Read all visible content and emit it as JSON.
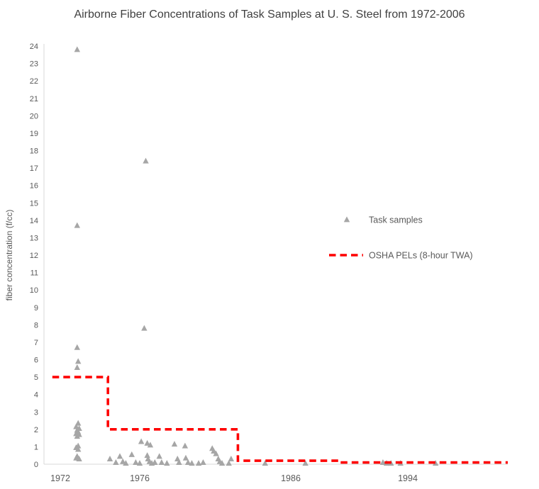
{
  "chart_data": {
    "type": "scatter",
    "title": "Airborne Fiber Concentrations of Task Samples at U. S. Steel from 1972-2006",
    "xlabel": "",
    "ylabel": "fiber concentration (f/cc)",
    "ylim": [
      0,
      24
    ],
    "y_tick_step": 1,
    "x_tick_labels": [
      1972,
      1976,
      1986,
      1994
    ],
    "grid": false,
    "legend_position": "middle-right",
    "colors": {
      "marker": "#a6a6a6",
      "pel_line": "#fe0000",
      "axis_text": "#595959",
      "title_text": "#404040",
      "axis_line": "#d9d9d9"
    },
    "legend": [
      {
        "label": "Task samples",
        "marker": "triangle",
        "color": "#a6a6a6"
      },
      {
        "label": "OSHA PELs (8-hour TWA)",
        "marker": "dashed-line",
        "color": "#fe0000"
      }
    ],
    "series": [
      {
        "name": "Task samples",
        "type": "scatter",
        "marker": "triangle",
        "color": "#a6a6a6",
        "points": [
          [
            1972.85,
            23.8
          ],
          [
            1972.85,
            13.7
          ],
          [
            1972.85,
            6.7
          ],
          [
            1972.9,
            5.9
          ],
          [
            1972.85,
            5.55
          ],
          [
            1972.9,
            2.35
          ],
          [
            1972.8,
            2.15
          ],
          [
            1972.95,
            2.05
          ],
          [
            1972.85,
            1.95
          ],
          [
            1972.9,
            1.85
          ],
          [
            1972.8,
            1.75
          ],
          [
            1972.95,
            1.7
          ],
          [
            1972.85,
            1.6
          ],
          [
            1972.9,
            1.05
          ],
          [
            1972.8,
            0.95
          ],
          [
            1972.9,
            0.85
          ],
          [
            1972.85,
            0.45
          ],
          [
            1972.8,
            0.35
          ],
          [
            1972.95,
            0.3
          ],
          [
            1974.5,
            0.3
          ],
          [
            1974.8,
            0.1
          ],
          [
            1975.0,
            0.45
          ],
          [
            1975.15,
            0.15
          ],
          [
            1975.3,
            0.05
          ],
          [
            1975.6,
            0.55
          ],
          [
            1975.8,
            0.1
          ],
          [
            1976.0,
            0.05
          ],
          [
            1976.1,
            1.3
          ],
          [
            1976.4,
            17.4
          ],
          [
            1976.3,
            7.8
          ],
          [
            1976.5,
            1.2
          ],
          [
            1976.7,
            1.1
          ],
          [
            1976.5,
            0.5
          ],
          [
            1976.55,
            0.3
          ],
          [
            1976.65,
            0.15
          ],
          [
            1976.8,
            0.05
          ],
          [
            1977.0,
            0.1
          ],
          [
            1977.3,
            0.45
          ],
          [
            1977.45,
            0.1
          ],
          [
            1977.8,
            0.05
          ],
          [
            1978.3,
            1.15
          ],
          [
            1978.5,
            0.3
          ],
          [
            1978.6,
            0.1
          ],
          [
            1979.0,
            1.05
          ],
          [
            1979.05,
            0.35
          ],
          [
            1979.2,
            0.1
          ],
          [
            1979.45,
            0.05
          ],
          [
            1979.9,
            0.05
          ],
          [
            1980.2,
            0.1
          ],
          [
            1980.8,
            0.9
          ],
          [
            1980.9,
            0.75
          ],
          [
            1981.05,
            0.6
          ],
          [
            1981.2,
            0.3
          ],
          [
            1981.3,
            0.15
          ],
          [
            1981.45,
            0.05
          ],
          [
            1981.9,
            0.05
          ],
          [
            1982.05,
            0.3
          ],
          [
            1984.3,
            0.05
          ],
          [
            1987.0,
            0.05
          ],
          [
            1992.3,
            0.1
          ],
          [
            1992.55,
            0.05
          ],
          [
            1992.85,
            0.05
          ],
          [
            1993.5,
            0.05
          ],
          [
            1995.9,
            0.05
          ]
        ]
      },
      {
        "name": "OSHA PELs (8-hour TWA)",
        "type": "step-line",
        "dashed": true,
        "color": "#fe0000",
        "segments": [
          {
            "from": 1971.6,
            "to": 1974.4,
            "value": 5
          },
          {
            "from": 1974.4,
            "to": 1982.5,
            "value": 2
          },
          {
            "from": 1982.5,
            "to": 1989.4,
            "value": 0.2
          },
          {
            "from": 1989.4,
            "to": 2001.0,
            "value": 0.1
          }
        ]
      }
    ]
  }
}
